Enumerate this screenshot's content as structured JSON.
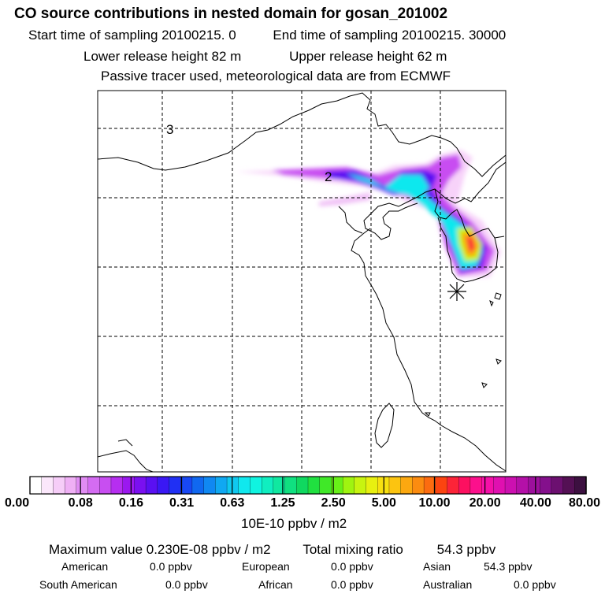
{
  "header": {
    "title": "CO  source contributions in nested domain for gosan_201002",
    "start_label": "Start time of sampling 20100215.     0",
    "end_label": "End time of sampling 20100215. 30000",
    "lower_label": "Lower release height   82 m",
    "upper_label": "Upper release height   62 m",
    "tracer_note": "Passive tracer used, meteorological data are from ECMWF"
  },
  "map": {
    "contour_labels": [
      "3",
      "2"
    ],
    "receptor_marker": "asterisk-icon"
  },
  "colorbar": {
    "tick_labels": [
      "0.00",
      "0.08",
      "0.16",
      "0.31",
      "0.63",
      "1.25",
      "2.50",
      "5.00",
      "10.00",
      "20.00",
      "40.00",
      "80.00"
    ],
    "colors": [
      "#ffffff",
      "#fbe7fb",
      "#f6cdf8",
      "#efb0f5",
      "#e08cf3",
      "#d46cf2",
      "#c84ef1",
      "#b62ef0",
      "#9b18ef",
      "#7a10f0",
      "#5a10f2",
      "#3a18f4",
      "#2030f4",
      "#1848f4",
      "#1068f0",
      "#1088f2",
      "#10a8f2",
      "#10c8f0",
      "#10e8ee",
      "#10f4e0",
      "#10eec0",
      "#10e8a0",
      "#10e080",
      "#10d860",
      "#20e040",
      "#40e828",
      "#68f018",
      "#a0f410",
      "#c8f410",
      "#e8f010",
      "#f8e010",
      "#fcc410",
      "#fca810",
      "#fc8c10",
      "#fc6c10",
      "#fc4410",
      "#fc2438",
      "#fc1060",
      "#fc108c",
      "#f410a8",
      "#e010b0",
      "#cc10b0",
      "#b410a8",
      "#9c109c",
      "#84108c",
      "#6c1070",
      "#541054",
      "#3c1040"
    ],
    "units": "10E-10 ppbv / m2"
  },
  "summary": {
    "max_label": "Maximum value  0.230E-08 ppbv / m2",
    "total_label": "Total mixing ratio",
    "total_value": "54.3 ppbv",
    "regions": [
      {
        "name": "American",
        "value": "0.0 ppbv"
      },
      {
        "name": "European",
        "value": "0.0 ppbv"
      },
      {
        "name": "Asian",
        "value": "54.3 ppbv"
      },
      {
        "name": "South American",
        "value": "0.0 ppbv"
      },
      {
        "name": "African",
        "value": "0.0 ppbv"
      },
      {
        "name": "Australian",
        "value": "0.0 ppbv"
      }
    ]
  }
}
